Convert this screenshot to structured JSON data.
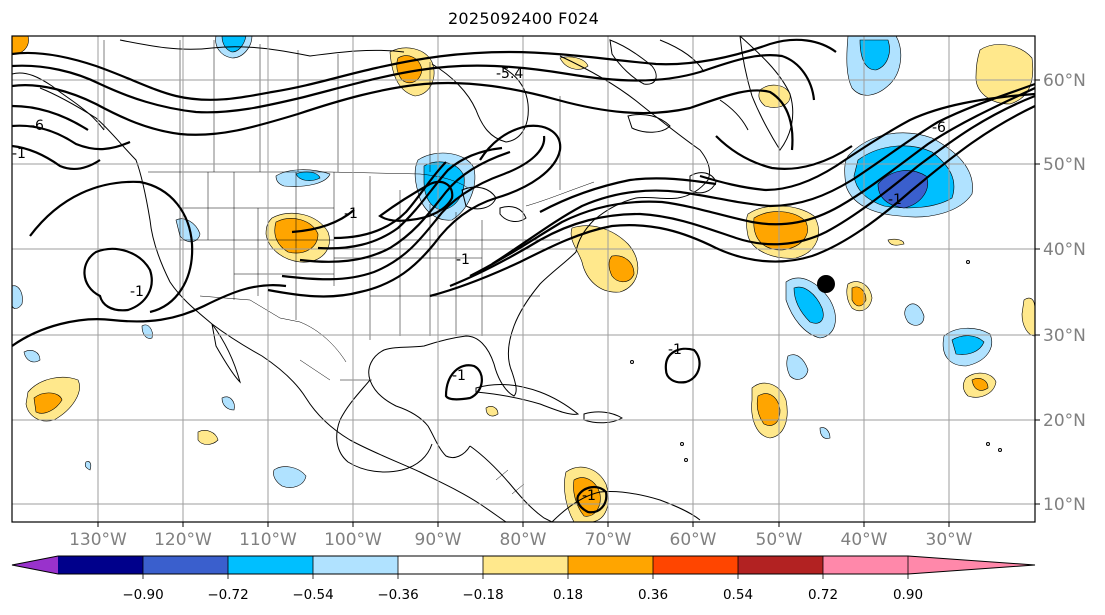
{
  "title": "2025092400 F024",
  "map": {
    "lat_labels": [
      "60°N",
      "50°N",
      "40°N",
      "30°N",
      "20°N",
      "10°N"
    ],
    "lon_labels": [
      "130°W",
      "120°W",
      "110°W",
      "100°W",
      "90°W",
      "80°W",
      "70°W",
      "60°W",
      "50°W",
      "40°W",
      "30°W"
    ],
    "contour_labels": [
      "-6",
      "-5.4",
      "-1",
      "-1",
      "-1",
      "-1",
      "-1",
      "-1",
      "-1",
      "-1",
      "-6"
    ]
  },
  "colorbar": {
    "colors": [
      "#9932cc",
      "#00008b",
      "#3a5fcd",
      "#00bfff",
      "#b0e2ff",
      "#ffffff",
      "#ffe88c",
      "#ffa500",
      "#ff4500",
      "#b22222",
      "#ff88aa"
    ],
    "ticks": [
      "−0.90",
      "−0.72",
      "−0.54",
      "−0.36",
      "−0.18",
      "0.18",
      "0.36",
      "0.54",
      "0.72",
      "0.90"
    ]
  }
}
